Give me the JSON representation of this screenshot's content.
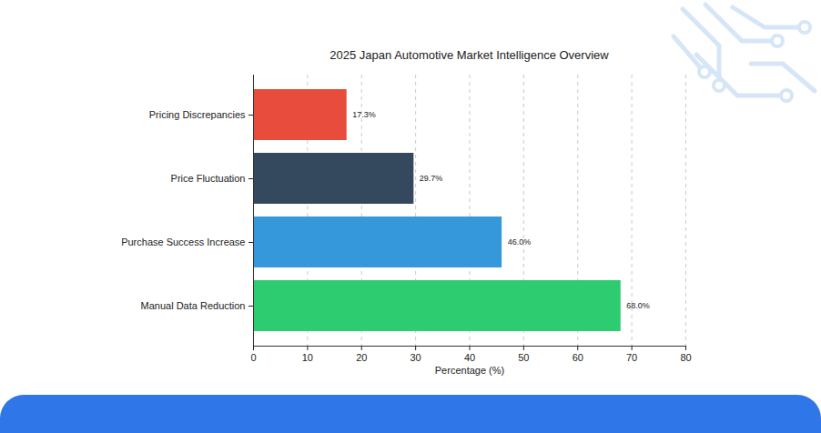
{
  "chart_data": {
    "type": "bar",
    "orientation": "horizontal",
    "title": "2025 Japan Automotive Market Intelligence Overview",
    "x_label": "Percentage (%)",
    "categories": [
      "Pricing Discrepancies",
      "Price Fluctuation",
      "Purchase Success Increase",
      "Manual Data Reduction"
    ],
    "values": [
      17.3,
      29.7,
      46.0,
      68.0
    ],
    "value_labels": [
      "17.3%",
      "29.7%",
      "46.0%",
      "68.0%"
    ],
    "colors": [
      "#e74c3c",
      "#34495e",
      "#3498db",
      "#2ecc71"
    ],
    "xlim": [
      0,
      80
    ],
    "xticks": [
      0,
      10,
      20,
      30,
      40,
      50,
      60,
      70,
      80
    ],
    "grid": true,
    "data_labels": true
  }
}
